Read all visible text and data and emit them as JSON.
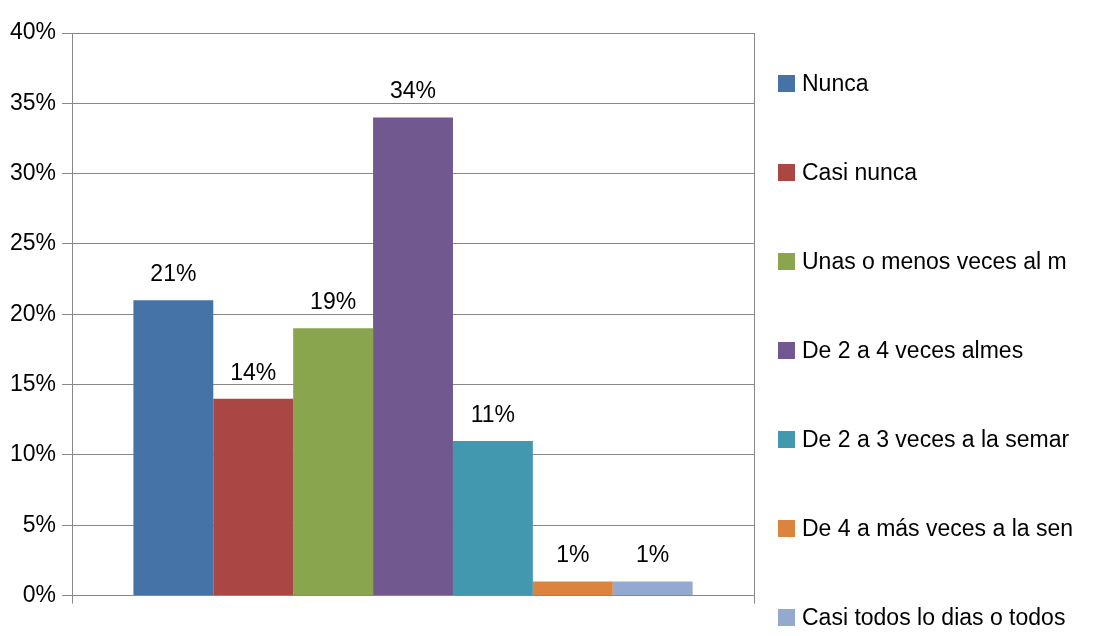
{
  "chart_data": {
    "type": "bar",
    "categories": [
      null
    ],
    "series": [
      {
        "name": "Nunca",
        "color": "#4572a7",
        "values": [
          21
        ],
        "value_labels": [
          "21%"
        ]
      },
      {
        "name": "Casi nunca",
        "color": "#aa4643",
        "values": [
          14
        ],
        "value_labels": [
          "14%"
        ]
      },
      {
        "name": "Unas o menos veces al m",
        "color": "#89a54e",
        "values": [
          19
        ],
        "value_labels": [
          "19%"
        ]
      },
      {
        "name": "De 2 a 4 veces almes",
        "color": "#71588f",
        "values": [
          34
        ],
        "value_labels": [
          "34%"
        ]
      },
      {
        "name": "De 2 a 3 veces a la semar",
        "color": "#4198af",
        "values": [
          11
        ],
        "value_labels": [
          "11%"
        ]
      },
      {
        "name": "De 4 a más veces a la sen",
        "color": "#db843d",
        "values": [
          1
        ],
        "value_labels": [
          "1%"
        ]
      },
      {
        "name": "Casi todos lo dias o todos",
        "color": "#93a9cf",
        "values": [
          1
        ],
        "value_labels": [
          "1%"
        ]
      }
    ],
    "ylim": [
      0,
      40
    ],
    "yticks": [
      {
        "value": 0,
        "label": "0%"
      },
      {
        "value": 5,
        "label": "5%"
      },
      {
        "value": 10,
        "label": "10%"
      },
      {
        "value": 15,
        "label": "15%"
      },
      {
        "value": 20,
        "label": "20%"
      },
      {
        "value": 25,
        "label": "25%"
      },
      {
        "value": 30,
        "label": "30%"
      },
      {
        "value": 35,
        "label": "35%"
      },
      {
        "value": 40,
        "label": "40%"
      }
    ],
    "grid": "y",
    "legend": "right"
  }
}
